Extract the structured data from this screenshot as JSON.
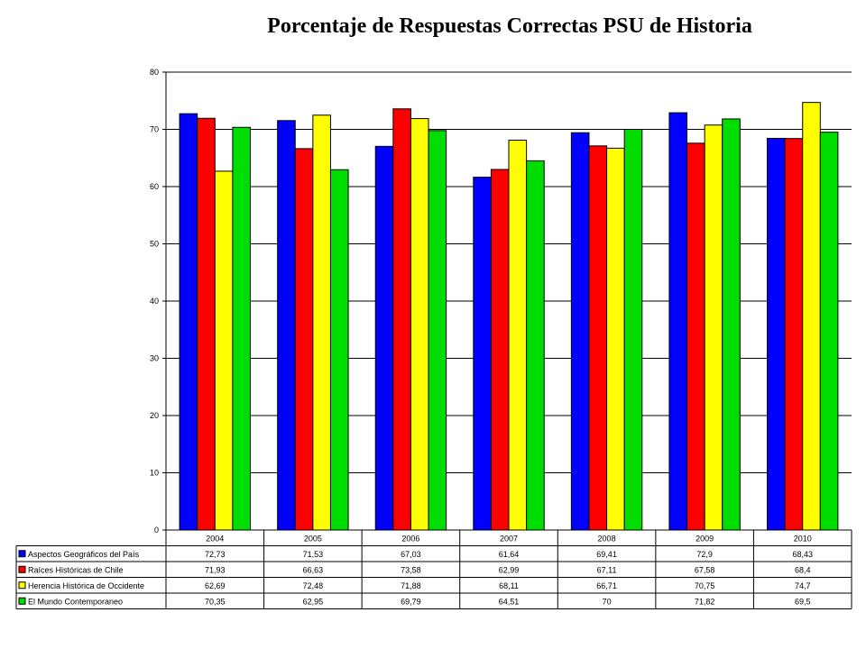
{
  "chart_data": {
    "type": "bar",
    "title": "Porcentaje de Respuestas Correctas PSU de Historia",
    "categories": [
      "2004",
      "2005",
      "2006",
      "2007",
      "2008",
      "2009",
      "2010"
    ],
    "ylim": [
      0,
      80
    ],
    "yticks": [
      "0",
      "10",
      "20",
      "30",
      "40",
      "50",
      "60",
      "70",
      "80"
    ],
    "grid": true,
    "legend": "data-table-below",
    "series": [
      {
        "name": "Aspectos Geográficos del País",
        "color": "#0000FF",
        "values": [
          72.73,
          71.53,
          67.03,
          61.64,
          69.41,
          72.9,
          68.43
        ],
        "labels": [
          "72,73",
          "71,53",
          "67,03",
          "61,64",
          "69,41",
          "72,9",
          "68,43"
        ]
      },
      {
        "name": "Raíces Históricas de Chile",
        "color": "#FF0000",
        "values": [
          71.93,
          66.63,
          73.58,
          62.99,
          67.11,
          67.58,
          68.4
        ],
        "labels": [
          "71,93",
          "66,63",
          "73,58",
          "62,99",
          "67,11",
          "67,58",
          "68,4"
        ]
      },
      {
        "name": "Herencia Histórica de Occidente",
        "color": "#FFFF00",
        "values": [
          62.69,
          72.48,
          71.88,
          68.11,
          66.71,
          70.75,
          74.7
        ],
        "labels": [
          "62,69",
          "72,48",
          "71,88",
          "68,11",
          "66,71",
          "70,75",
          "74,7"
        ]
      },
      {
        "name": "El Mundo Contemporaneo",
        "color": "#00DD00",
        "values": [
          70.35,
          62.95,
          69.79,
          64.51,
          70,
          71.82,
          69.5
        ],
        "labels": [
          "70,35",
          "62,95",
          "69,79",
          "64,51",
          "70",
          "71,82",
          "69,5"
        ]
      }
    ]
  }
}
